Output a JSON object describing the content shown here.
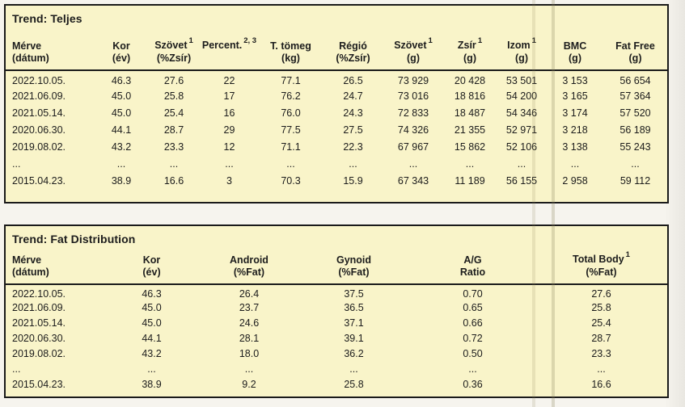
{
  "colors": {
    "panel_bg": "#f9f4c9",
    "border_color": "#1a1a1a",
    "page_bg": "#f4f2ec",
    "text_color": "#1c1c1c"
  },
  "tables": [
    {
      "title": "Trend: Teljes",
      "columns": [
        {
          "name": "Mérve",
          "unit": "(dátum)",
          "sup": ""
        },
        {
          "name": "Kor",
          "unit": "(év)",
          "sup": ""
        },
        {
          "name": "Szövet",
          "unit": "(%Zsír)",
          "sup": "1"
        },
        {
          "name": "Percent.",
          "unit": "",
          "sup": "2, 3"
        },
        {
          "name": "T. tömeg",
          "unit": "(kg)",
          "sup": ""
        },
        {
          "name": "Régió",
          "unit": "(%Zsír)",
          "sup": ""
        },
        {
          "name": "Szövet",
          "unit": "(g)",
          "sup": "1"
        },
        {
          "name": "Zsír",
          "unit": "(g)",
          "sup": "1"
        },
        {
          "name": "Izom",
          "unit": "(g)",
          "sup": "1"
        },
        {
          "name": "BMC",
          "unit": "(g)",
          "sup": ""
        },
        {
          "name": "Fat Free",
          "unit": "(g)",
          "sup": ""
        }
      ],
      "rows": [
        [
          "2022.10.05.",
          "46.3",
          "27.6",
          "22",
          "77.1",
          "26.5",
          "73 929",
          "20 428",
          "53 501",
          "3 153",
          "56 654"
        ],
        [
          "2021.06.09.",
          "45.0",
          "25.8",
          "17",
          "76.2",
          "24.7",
          "73 016",
          "18 816",
          "54 200",
          "3 165",
          "57 364"
        ],
        [
          "2021.05.14.",
          "45.0",
          "25.4",
          "16",
          "76.0",
          "24.3",
          "72 833",
          "18 487",
          "54 346",
          "3 174",
          "57 520"
        ],
        [
          "2020.06.30.",
          "44.1",
          "28.7",
          "29",
          "77.5",
          "27.5",
          "74 326",
          "21 355",
          "52 971",
          "3 218",
          "56 189"
        ],
        [
          "2019.08.02.",
          "43.2",
          "23.3",
          "12",
          "71.1",
          "22.3",
          "67 967",
          "15 862",
          "52 106",
          "3 138",
          "55 243"
        ],
        [
          "...",
          "...",
          "...",
          "...",
          "...",
          "...",
          "...",
          "...",
          "...",
          "...",
          "..."
        ],
        [
          "2015.04.23.",
          "38.9",
          "16.6",
          "3",
          "70.3",
          "15.9",
          "67 343",
          "11 189",
          "56 155",
          "2 958",
          "59 112"
        ]
      ]
    },
    {
      "title": "Trend: Fat Distribution",
      "columns": [
        {
          "name": "Mérve",
          "unit": "(dátum)",
          "sup": ""
        },
        {
          "name": "Kor",
          "unit": "(év)",
          "sup": ""
        },
        {
          "name": "Android",
          "unit": "(%Fat)",
          "sup": ""
        },
        {
          "name": "Gynoid",
          "unit": "(%Fat)",
          "sup": ""
        },
        {
          "name": "A/G",
          "unit": "Ratio",
          "sup": ""
        },
        {
          "name": "Total Body",
          "unit": "(%Fat)",
          "sup": "1"
        }
      ],
      "rows": [
        [
          "2022.10.05.",
          "46.3",
          "26.4",
          "37.5",
          "0.70",
          "27.6"
        ],
        [
          "2021.06.09.",
          "45.0",
          "23.7",
          "36.5",
          "0.65",
          "25.8"
        ],
        [
          "2021.05.14.",
          "45.0",
          "24.6",
          "37.1",
          "0.66",
          "25.4"
        ],
        [
          "2020.06.30.",
          "44.1",
          "28.1",
          "39.1",
          "0.72",
          "28.7"
        ],
        [
          "2019.08.02.",
          "43.2",
          "18.0",
          "36.2",
          "0.50",
          "23.3"
        ],
        [
          "...",
          "...",
          "...",
          "...",
          "...",
          "..."
        ],
        [
          "2015.04.23.",
          "38.9",
          "9.2",
          "25.8",
          "0.36",
          "16.6"
        ]
      ]
    }
  ]
}
